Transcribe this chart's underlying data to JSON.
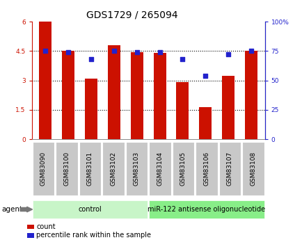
{
  "title": "GDS1729 / 265094",
  "categories": [
    "GSM83090",
    "GSM83100",
    "GSM83101",
    "GSM83102",
    "GSM83103",
    "GSM83104",
    "GSM83105",
    "GSM83106",
    "GSM83107",
    "GSM83108"
  ],
  "bar_values": [
    6.0,
    4.5,
    3.1,
    4.8,
    4.45,
    4.4,
    2.9,
    1.65,
    3.25,
    4.5
  ],
  "dot_values": [
    75,
    74,
    68,
    75,
    74,
    74,
    68,
    54,
    72,
    75
  ],
  "bar_color": "#cc1100",
  "dot_color": "#2222cc",
  "ylim_left": [
    0,
    6
  ],
  "ylim_right": [
    0,
    100
  ],
  "yticks_left": [
    0,
    1.5,
    3.0,
    4.5,
    6.0
  ],
  "yticks_left_labels": [
    "0",
    "1.5",
    "3",
    "4.5",
    "6"
  ],
  "yticks_right": [
    0,
    25,
    50,
    75,
    100
  ],
  "yticks_right_labels": [
    "0",
    "25",
    "50",
    "75",
    "100%"
  ],
  "hlines": [
    1.5,
    3.0,
    4.5
  ],
  "groups": [
    {
      "label": "control",
      "start": 0,
      "end": 5,
      "color": "#c8f5c8"
    },
    {
      "label": "miR-122 antisense oligonucleotide",
      "start": 5,
      "end": 10,
      "color": "#88ee88"
    }
  ],
  "agent_label": "agent",
  "legend_items": [
    {
      "color": "#cc1100",
      "label": "count"
    },
    {
      "color": "#2222cc",
      "label": "percentile rank within the sample"
    }
  ],
  "tick_label_bg": "#c8c8c8",
  "title_fontsize": 10,
  "tick_fontsize": 6.5,
  "cat_fontsize": 6.5,
  "group_fontsize": 7,
  "legend_fontsize": 7,
  "agent_fontsize": 7.5
}
